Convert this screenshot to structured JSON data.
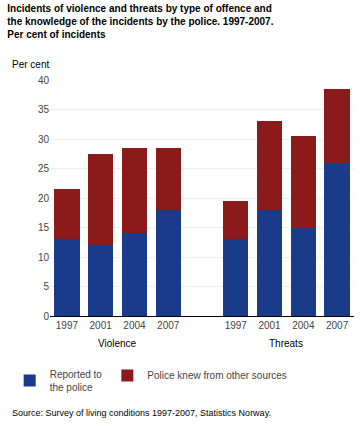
{
  "chart_data": {
    "type": "bar",
    "stacked": true,
    "title": "Incidents of violence and threats by type of offence and\nthe knowledge of the incidents by the police. 1997-2007.\nPer cent of incidents",
    "ylabel": "Per cent",
    "source": "Source: Survey of living conditions 1997-2007, Statistics Norway.",
    "categories": [
      "1997",
      "2001",
      "2004",
      "2007",
      null,
      "1997",
      "2001",
      "2004",
      "2007"
    ],
    "annotations": [
      "Violence",
      "Threats"
    ],
    "series": [
      {
        "name": "Reported to\nthe police",
        "color": "#1a3a8a",
        "values": [
          13,
          12,
          14,
          18,
          null,
          13,
          18,
          15,
          26
        ]
      },
      {
        "name": "Police knew from other sources",
        "color": "#8b1a1a",
        "values": [
          8.5,
          15.5,
          14.5,
          10.5,
          null,
          6.5,
          15,
          15.5,
          12.5
        ]
      }
    ],
    "ylim": [
      0,
      40
    ],
    "yticks": [
      0,
      5,
      10,
      15,
      20,
      25,
      30,
      35,
      40
    ],
    "grid": true,
    "legend": "bottom"
  }
}
